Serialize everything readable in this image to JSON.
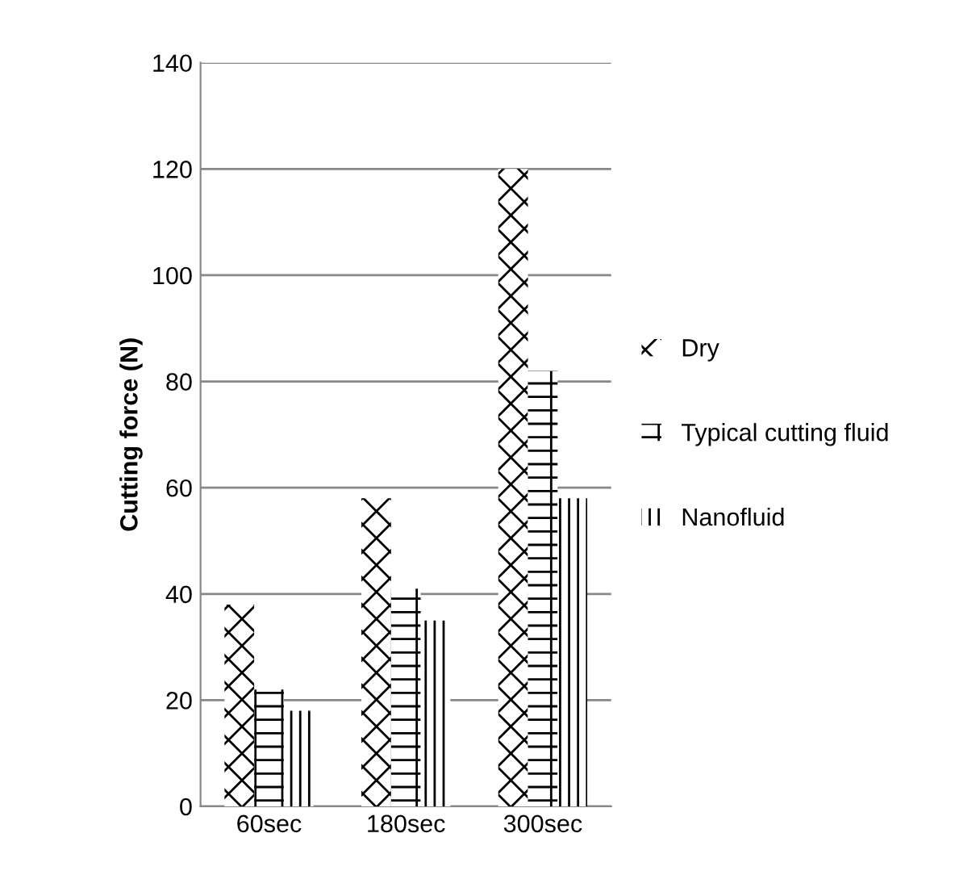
{
  "chart_data": {
    "type": "bar",
    "ylabel": "Cutting force (N)",
    "categories": [
      "60sec",
      "180sec",
      "300sec"
    ],
    "series": [
      {
        "name": "Dry",
        "color": "#000000",
        "values": [
          38,
          58,
          120
        ]
      },
      {
        "name": "Typical cutting fluid",
        "color": "#000000",
        "values": [
          22,
          41,
          82
        ]
      },
      {
        "name": "Nanofluid",
        "color": "#000000",
        "values": [
          18,
          35,
          58
        ]
      }
    ],
    "ylim": [
      0,
      140
    ],
    "yticks": [
      0,
      20,
      40,
      60,
      80,
      100,
      120,
      140
    ],
    "grid": "y",
    "legend": "right"
  }
}
